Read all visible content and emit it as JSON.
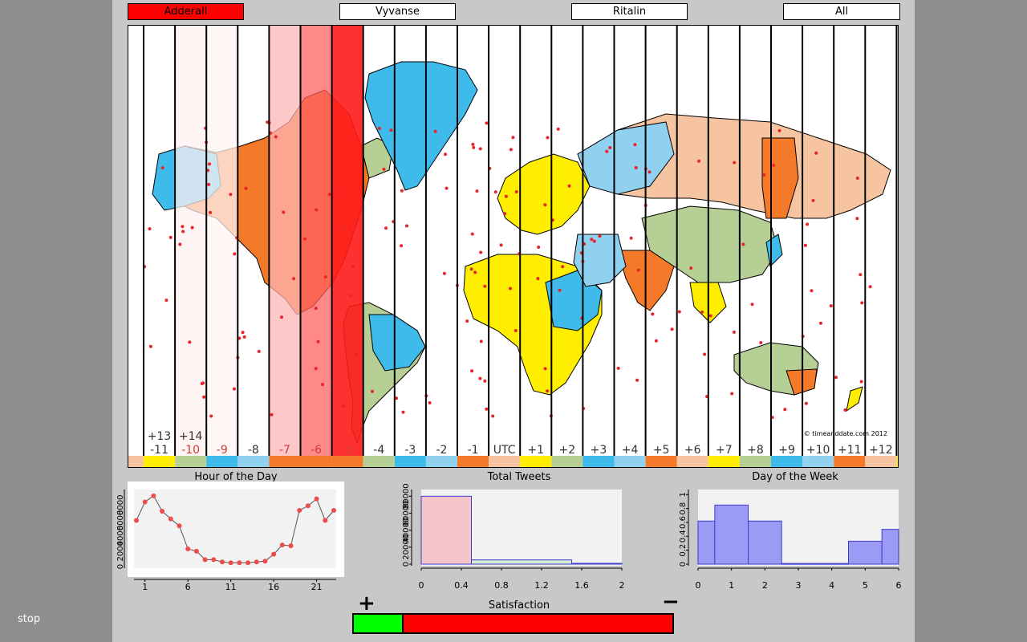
{
  "window": {
    "stop_label": "stop"
  },
  "drugs": [
    {
      "label": "Adderall",
      "active": true
    },
    {
      "label": "Vyvanse",
      "active": false
    },
    {
      "label": "Ritalin",
      "active": false
    },
    {
      "label": "All",
      "active": false
    }
  ],
  "map": {
    "copyright": "© timeanddate.com 2012",
    "zones": [
      {
        "label": "-11",
        "upper": "+13",
        "color": "#ffee00",
        "tint": null
      },
      {
        "label": "-10",
        "upper": "+14",
        "color": "#b6cf94",
        "tint": "#fff0f0"
      },
      {
        "label": "-9",
        "upper": "",
        "color": "#3ebbea",
        "tint": "#fff3f3"
      },
      {
        "label": "-8",
        "upper": "",
        "color": "#8fd1ef",
        "tint": null
      },
      {
        "label": "-7",
        "upper": "",
        "color": "#f47a2a",
        "tint": "#ffb6b6"
      },
      {
        "label": "-6",
        "upper": "",
        "color": "#f47a2a",
        "tint": "#ff6060"
      },
      {
        "label": "-5",
        "upper": "",
        "color": "#f47a2a",
        "tint": "#ff1a1a"
      },
      {
        "label": "-4",
        "upper": "",
        "color": "#b6cf94",
        "tint": null
      },
      {
        "label": "-3",
        "upper": "",
        "color": "#3ebbea",
        "tint": null
      },
      {
        "label": "-2",
        "upper": "",
        "color": "#8fd1ef",
        "tint": null
      },
      {
        "label": "-1",
        "upper": "",
        "color": "#f47a2a",
        "tint": null
      },
      {
        "label": "UTC",
        "upper": "",
        "color": "#f7c4a1",
        "tint": null
      },
      {
        "label": "+1",
        "upper": "",
        "color": "#ffee00",
        "tint": null
      },
      {
        "label": "+2",
        "upper": "",
        "color": "#b6cf94",
        "tint": null
      },
      {
        "label": "+3",
        "upper": "",
        "color": "#3ebbea",
        "tint": null
      },
      {
        "label": "+4",
        "upper": "",
        "color": "#8fd1ef",
        "tint": null
      },
      {
        "label": "+5",
        "upper": "",
        "color": "#f47a2a",
        "tint": null
      },
      {
        "label": "+6",
        "upper": "",
        "color": "#f7c4a1",
        "tint": null
      },
      {
        "label": "+7",
        "upper": "",
        "color": "#ffee00",
        "tint": null
      },
      {
        "label": "+8",
        "upper": "",
        "color": "#b6cf94",
        "tint": null
      },
      {
        "label": "+9",
        "upper": "",
        "color": "#3ebbea",
        "tint": null
      },
      {
        "label": "+10",
        "upper": "",
        "color": "#8fd1ef",
        "tint": null
      },
      {
        "label": "+11",
        "upper": "",
        "color": "#f47a2a",
        "tint": null
      },
      {
        "label": "+12",
        "upper": "",
        "color": "#f7c4a1",
        "tint": null
      }
    ]
  },
  "hour_chart": {
    "title": "Hour of the Day",
    "x": [
      0,
      1,
      2,
      3,
      4,
      5,
      6,
      7,
      8,
      9,
      10,
      11,
      12,
      13,
      14,
      15,
      16,
      17,
      18,
      19,
      20,
      21,
      22,
      23
    ],
    "y": [
      6000,
      8400,
      9200,
      7200,
      6200,
      5300,
      2300,
      2000,
      900,
      900,
      600,
      500,
      500,
      500,
      600,
      700,
      1600,
      2800,
      2700,
      7300,
      7900,
      8800,
      6000,
      7300
    ],
    "xticks": [
      "1",
      "6",
      "11",
      "16",
      "21"
    ],
    "xtick_values": [
      1,
      6,
      11,
      16,
      21
    ],
    "yticks": [
      "0",
      "2000",
      "4000",
      "6000",
      "8000"
    ],
    "ylim": [
      0,
      9600
    ]
  },
  "tweets_chart": {
    "title": "Total Tweets",
    "bars": [
      {
        "x0": 0,
        "x1": 0.5,
        "value": 80000,
        "fill": "#f5c6c9",
        "stroke": "#3d3dcf"
      },
      {
        "x0": 0.5,
        "x1": 1.5,
        "value": 5000,
        "fill": "#d6ecd6",
        "stroke": "#3d3dcf"
      },
      {
        "x0": 1.5,
        "x1": 2.0,
        "value": 1000,
        "fill": "#ddddf5",
        "stroke": "#3d3dcf"
      }
    ],
    "xticks": [
      "0",
      "0.4",
      "0.8",
      "1.2",
      "1.6",
      "2"
    ],
    "xtick_values": [
      0,
      0.4,
      0.8,
      1.2,
      1.6,
      2
    ],
    "yticks": [
      "0",
      "20000",
      "40000",
      "60000",
      "80000"
    ],
    "ytick_values": [
      0,
      20000,
      40000,
      60000,
      80000
    ],
    "xlim": [
      0,
      2
    ],
    "ylim": [
      0,
      86000
    ]
  },
  "week_chart": {
    "title": "Day of the Week",
    "bars": [
      {
        "x0": 0,
        "x1": 0.5,
        "value": 0.62
      },
      {
        "x0": 0.5,
        "x1": 1.5,
        "value": 0.85
      },
      {
        "x0": 1.5,
        "x1": 2.5,
        "value": 0.62
      },
      {
        "x0": 2.5,
        "x1": 3.5,
        "value": 0.01
      },
      {
        "x0": 3.5,
        "x1": 4.5,
        "value": 0.01
      },
      {
        "x0": 4.5,
        "x1": 5.5,
        "value": 0.33
      },
      {
        "x0": 5.5,
        "x1": 6.0,
        "value": 0.5
      }
    ],
    "xticks": [
      "0",
      "1",
      "2",
      "3",
      "4",
      "5",
      "6"
    ],
    "xtick_values": [
      0,
      1,
      2,
      3,
      4,
      5,
      6
    ],
    "yticks": [
      "0",
      "0.2",
      "0.4",
      "0.6",
      "0.8",
      "1"
    ],
    "ytick_values": [
      0,
      0.2,
      0.4,
      0.6,
      0.8,
      1
    ],
    "xlim": [
      0,
      6
    ],
    "ylim": [
      0,
      1.05
    ],
    "fill": "#9b9bf5",
    "stroke": "#3d3dcf"
  },
  "satisfaction": {
    "title": "Satisfaction",
    "plus": "+",
    "minus": "−",
    "positive_fraction": 0.15
  }
}
